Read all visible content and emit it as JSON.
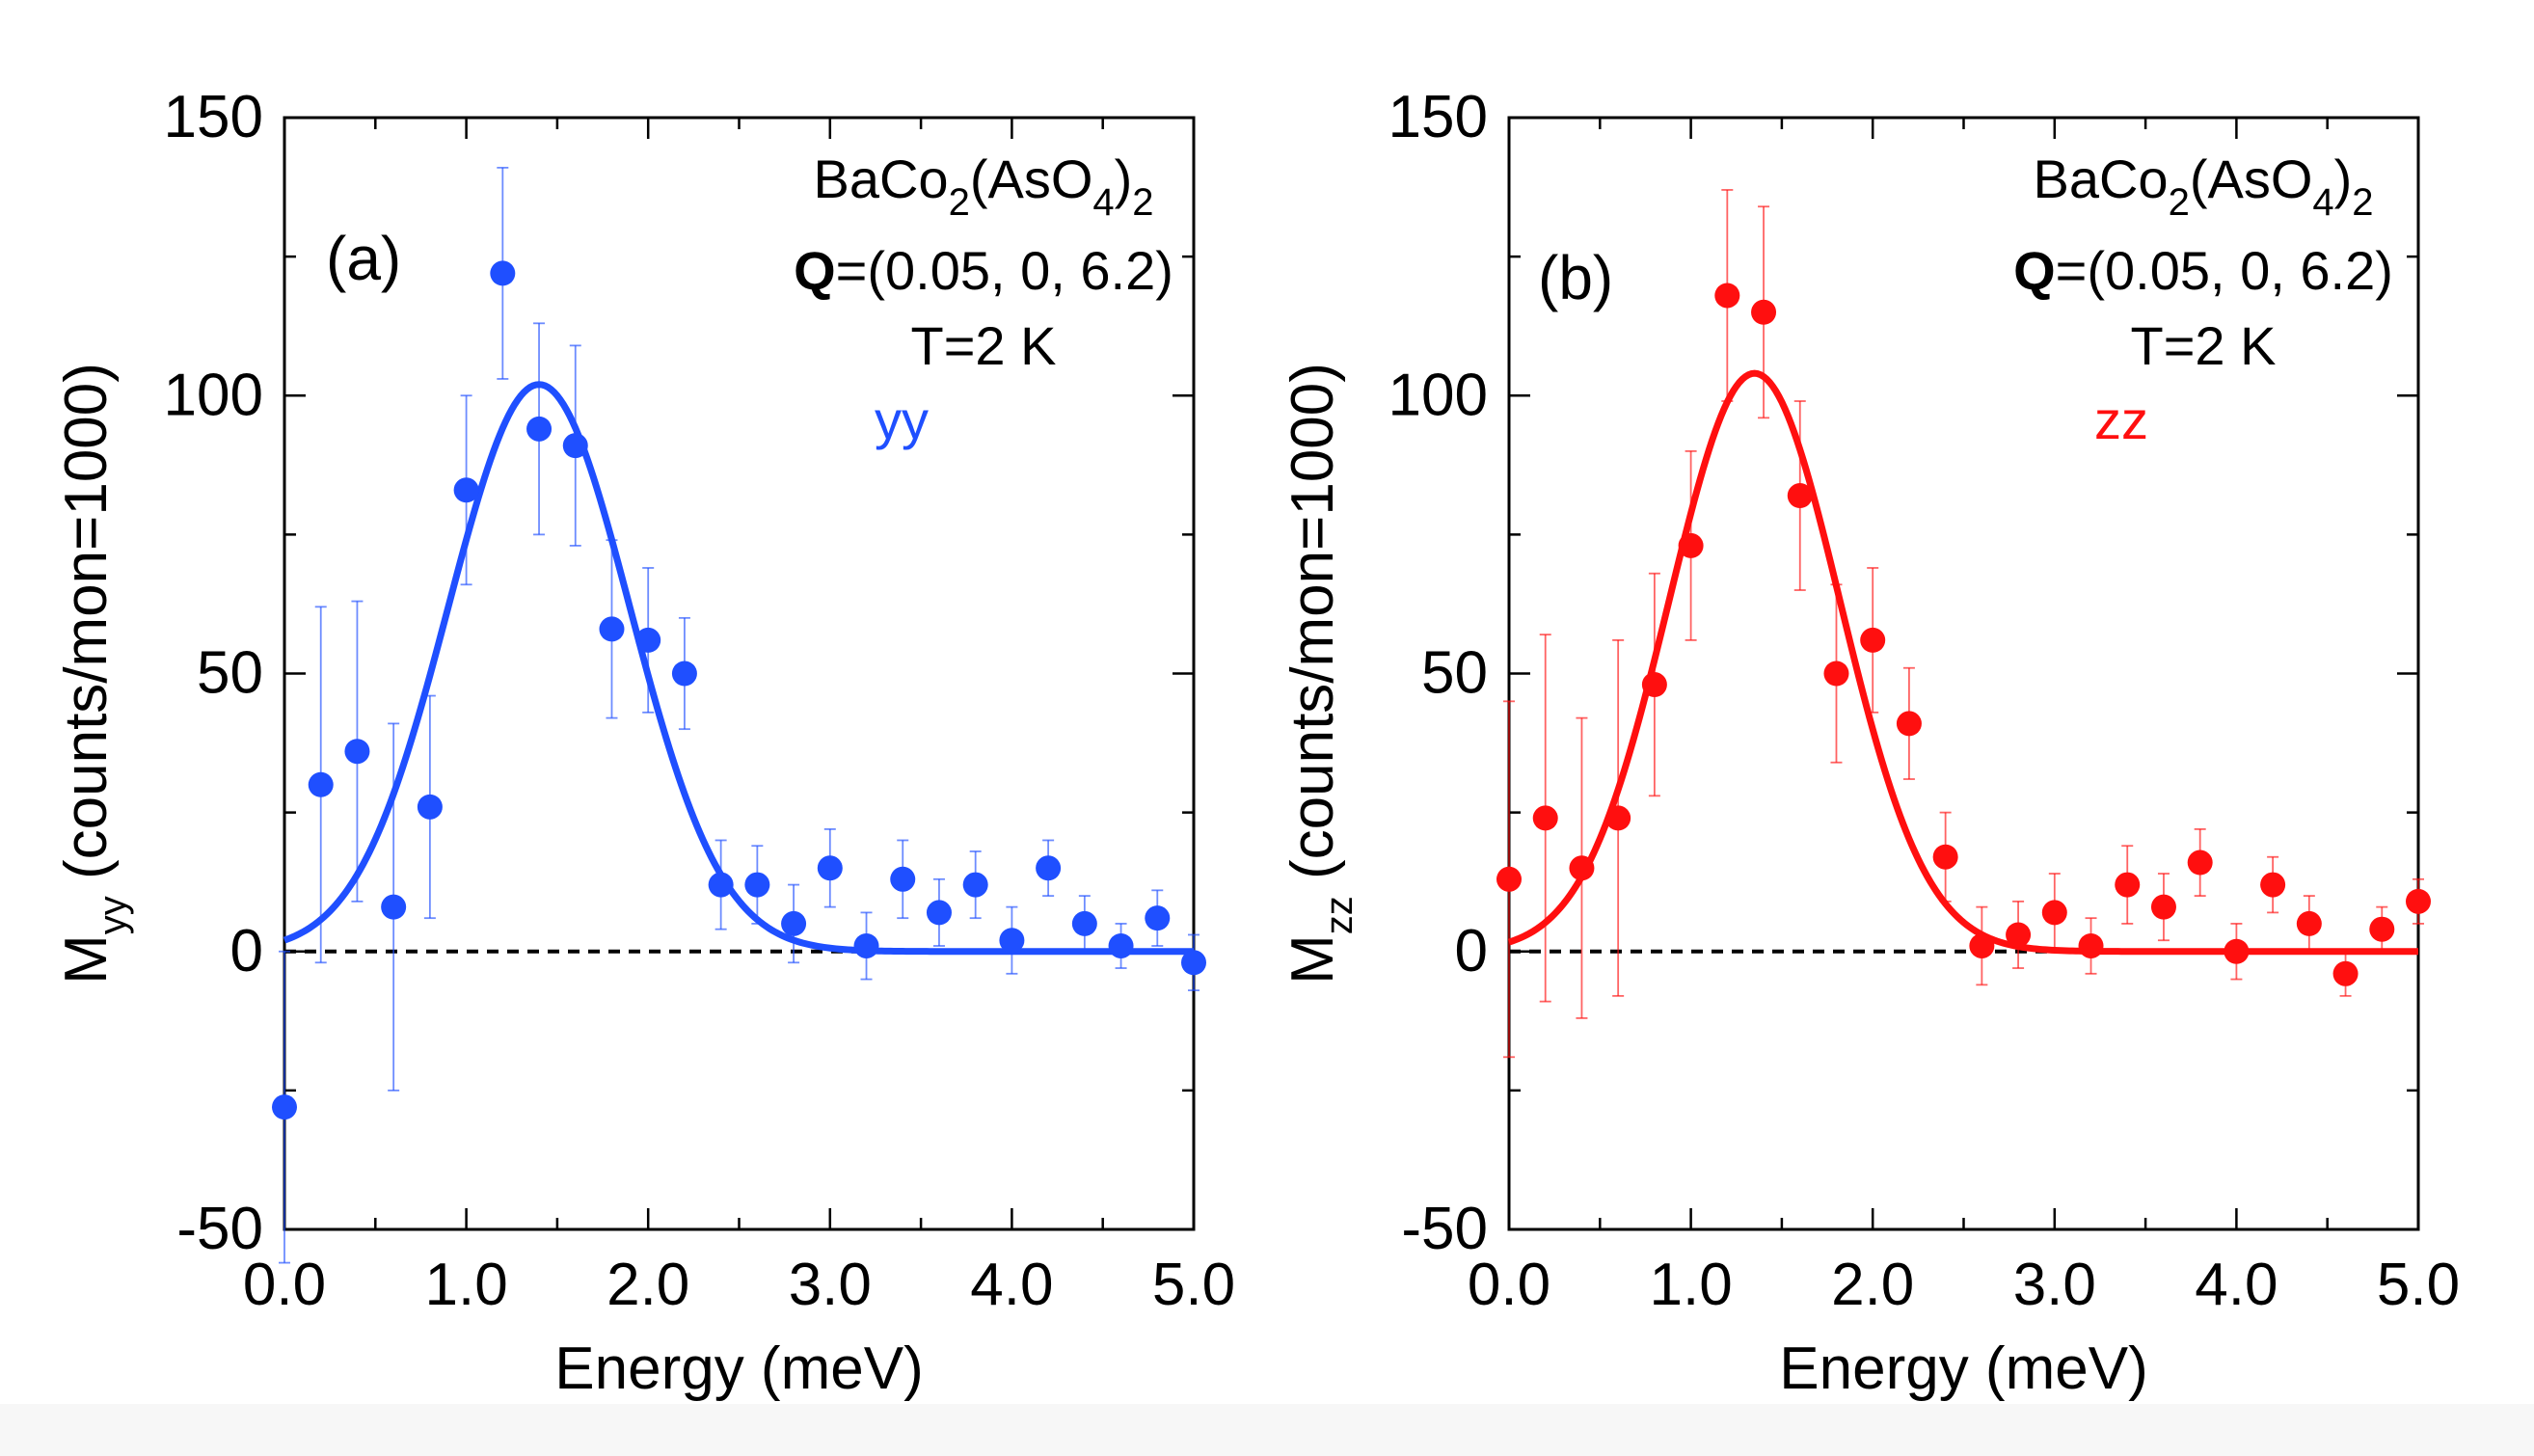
{
  "chart_data": [
    {
      "type": "scatter",
      "panel_label": "(a)",
      "color": "#1f4fff",
      "sample": {
        "base": "BaCo",
        "sub1": "2",
        "mid": "(AsO",
        "sub2": "4",
        "close": ")",
        "sub3": "2"
      },
      "q_label": {
        "bold": "Q",
        "rest": "=(0.05, 0, 6.2)"
      },
      "temperature": "T=2 K",
      "channel": "yy",
      "xlabel": "Energy (meV)",
      "ylabel": {
        "main": "M",
        "sub": "yy",
        "rest": "(counts/mon=1000)"
      },
      "xlim": [
        0,
        5
      ],
      "ylim": [
        -50,
        150
      ],
      "xticks": [
        "0.0",
        "1.0",
        "2.0",
        "3.0",
        "4.0",
        "5.0"
      ],
      "yticks": [
        "-50",
        "0",
        "50",
        "100",
        "150"
      ],
      "x": [
        0.0,
        0.2,
        0.4,
        0.6,
        0.8,
        1.0,
        1.2,
        1.4,
        1.6,
        1.8,
        2.0,
        2.2,
        2.4,
        2.6,
        2.8,
        3.0,
        3.2,
        3.4,
        3.6,
        3.8,
        4.0,
        4.2,
        4.4,
        4.6,
        4.8,
        5.0
      ],
      "y": [
        -28,
        30,
        36,
        8,
        26,
        83,
        122,
        94,
        91,
        58,
        56,
        50,
        12,
        12,
        5,
        15,
        1,
        13,
        7,
        12,
        2,
        15,
        5,
        1,
        6,
        -2
      ],
      "yerr": [
        28,
        32,
        27,
        33,
        20,
        17,
        19,
        19,
        18,
        16,
        13,
        10,
        8,
        7,
        7,
        7,
        6,
        7,
        6,
        6,
        6,
        5,
        5,
        4,
        5,
        5
      ],
      "fit": {
        "type": "gaussian",
        "amplitude": 102,
        "center": 1.4,
        "sigma": 0.5
      },
      "baseline": 0
    },
    {
      "type": "scatter",
      "panel_label": "(b)",
      "color": "#ff0f0f",
      "sample": {
        "base": "BaCo",
        "sub1": "2",
        "mid": "(AsO",
        "sub2": "4",
        "close": ")",
        "sub3": "2"
      },
      "q_label": {
        "bold": "Q",
        "rest": "=(0.05, 0, 6.2)"
      },
      "temperature": "T=2 K",
      "channel": "zz",
      "xlabel": "Energy (meV)",
      "ylabel": {
        "main": "M",
        "sub": "zz",
        "rest": "(counts/mon=1000)"
      },
      "xlim": [
        0,
        5
      ],
      "ylim": [
        -50,
        150
      ],
      "xticks": [
        "0.0",
        "1.0",
        "2.0",
        "3.0",
        "4.0",
        "5.0"
      ],
      "yticks": [
        "-50",
        "0",
        "50",
        "100",
        "150"
      ],
      "x": [
        0.0,
        0.2,
        0.4,
        0.6,
        0.8,
        1.0,
        1.2,
        1.4,
        1.6,
        1.8,
        2.0,
        2.2,
        2.4,
        2.6,
        2.8,
        3.0,
        3.2,
        3.4,
        3.6,
        3.8,
        4.0,
        4.2,
        4.4,
        4.6,
        4.8,
        5.0
      ],
      "y": [
        13,
        24,
        15,
        24,
        48,
        73,
        118,
        115,
        82,
        50,
        56,
        41,
        17,
        1,
        3,
        7,
        1,
        12,
        8,
        16,
        0,
        12,
        5,
        -4,
        4,
        9
      ],
      "yerr": [
        32,
        33,
        27,
        32,
        20,
        17,
        19,
        19,
        17,
        16,
        13,
        10,
        8,
        7,
        6,
        7,
        5,
        7,
        6,
        6,
        5,
        5,
        5,
        4,
        4,
        4
      ],
      "fit": {
        "type": "gaussian",
        "amplitude": 104,
        "center": 1.35,
        "sigma": 0.47
      },
      "baseline": 0
    }
  ]
}
